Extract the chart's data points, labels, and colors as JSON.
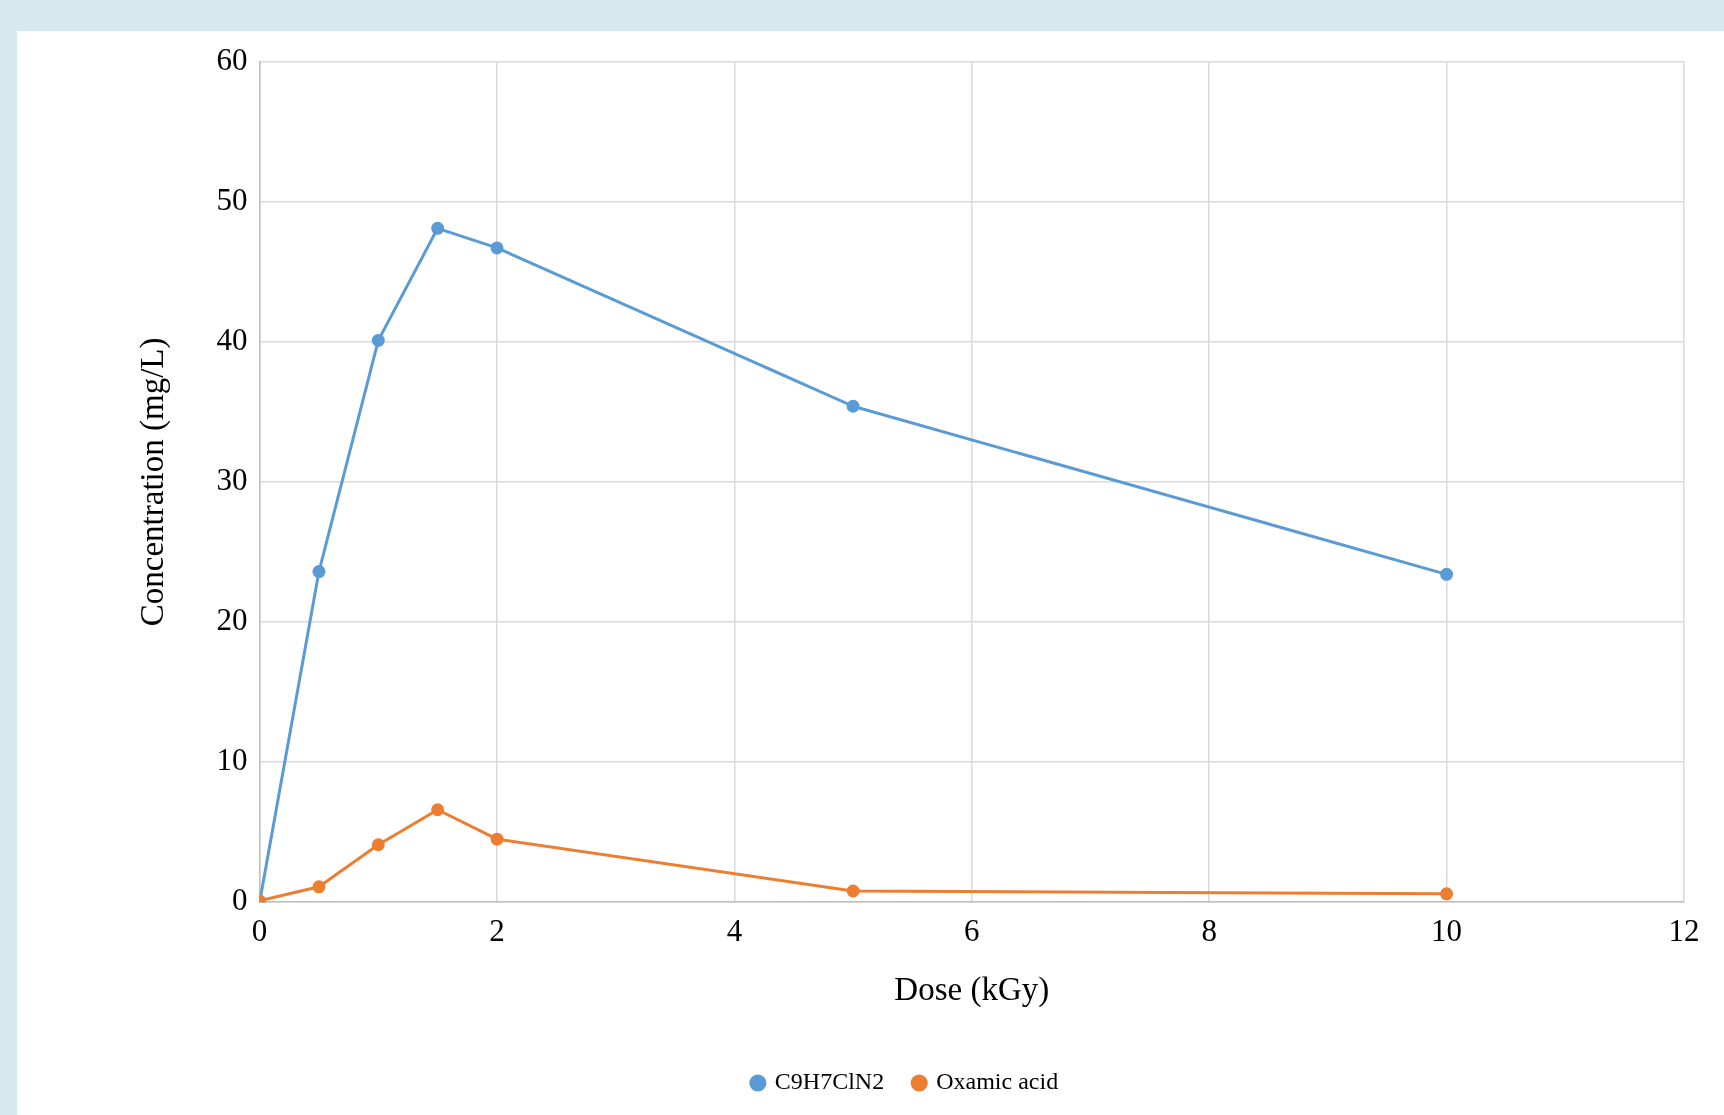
{
  "chart_data": {
    "type": "line",
    "xlabel": "Dose (kGy)",
    "ylabel": "Concentration (mg/L)",
    "x": [
      0,
      0.5,
      1,
      1.5,
      2,
      5,
      10
    ],
    "series": [
      {
        "name": "C9H7ClN2",
        "color": "#5b9bd5",
        "values": [
          0,
          23.6,
          40.1,
          48.1,
          46.7,
          35.4,
          23.4
        ]
      },
      {
        "name": "Oxamic acid",
        "color": "#ed7d31",
        "values": [
          0.1,
          1.1,
          4.1,
          6.6,
          4.5,
          0.8,
          0.6
        ]
      }
    ],
    "xlim": [
      0,
      12
    ],
    "xticks": [
      0,
      2,
      4,
      6,
      8,
      10,
      12
    ],
    "ylim": [
      0,
      60
    ],
    "yticks": [
      0,
      10,
      20,
      30,
      40,
      50,
      60
    ],
    "grid": true,
    "legend": "bottom",
    "marker": "circle",
    "line_style": "solid"
  }
}
